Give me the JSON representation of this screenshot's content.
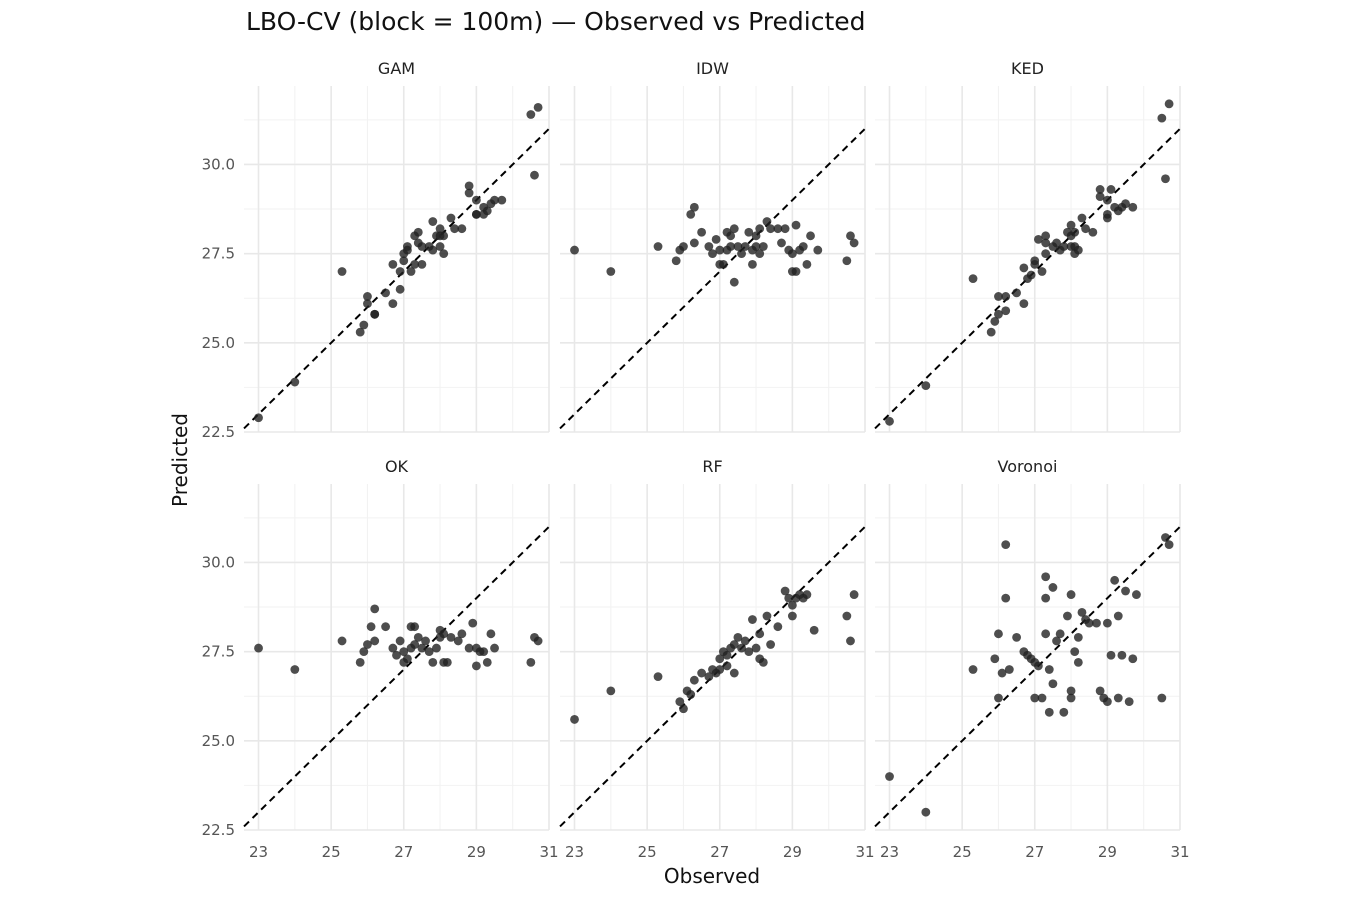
{
  "chart_data": {
    "type": "scatter",
    "title": "LBO-CV (block = 100m) — Observed vs Predicted",
    "xlabel": "Observed",
    "ylabel": "Predicted",
    "xlim": [
      22.6,
      31.0
    ],
    "ylim": [
      22.5,
      32.2
    ],
    "x_ticks": [
      23,
      25,
      27,
      29,
      31
    ],
    "y_ticks": [
      22.5,
      25.0,
      27.5,
      30.0
    ],
    "x_tick_labels": [
      "23",
      "25",
      "27",
      "29",
      "31"
    ],
    "y_tick_labels": [
      "22.5",
      "25.0",
      "27.5",
      "30.0"
    ],
    "reference_line": "y = x",
    "grid": true,
    "layout": "2x3 facets",
    "point_color": "#222222",
    "panels": [
      {
        "name": "GAM",
        "points": [
          [
            23.0,
            22.9
          ],
          [
            24.0,
            23.9
          ],
          [
            25.3,
            27.0
          ],
          [
            25.8,
            25.3
          ],
          [
            25.9,
            25.5
          ],
          [
            26.0,
            26.3
          ],
          [
            26.0,
            26.1
          ],
          [
            26.2,
            25.8
          ],
          [
            26.2,
            25.8
          ],
          [
            26.5,
            26.4
          ],
          [
            26.7,
            26.1
          ],
          [
            26.7,
            27.2
          ],
          [
            26.9,
            26.5
          ],
          [
            26.9,
            27.0
          ],
          [
            27.0,
            27.3
          ],
          [
            27.0,
            27.5
          ],
          [
            27.1,
            27.6
          ],
          [
            27.1,
            27.7
          ],
          [
            27.2,
            27.0
          ],
          [
            27.3,
            27.2
          ],
          [
            27.3,
            28.0
          ],
          [
            27.4,
            27.8
          ],
          [
            27.4,
            28.1
          ],
          [
            27.5,
            27.2
          ],
          [
            27.5,
            27.7
          ],
          [
            27.7,
            27.7
          ],
          [
            27.8,
            27.6
          ],
          [
            27.8,
            28.4
          ],
          [
            27.9,
            28.0
          ],
          [
            28.0,
            28.0
          ],
          [
            28.0,
            28.2
          ],
          [
            28.0,
            27.7
          ],
          [
            28.1,
            27.5
          ],
          [
            28.1,
            28.0
          ],
          [
            28.3,
            28.5
          ],
          [
            28.4,
            28.2
          ],
          [
            28.6,
            28.2
          ],
          [
            28.8,
            29.2
          ],
          [
            28.8,
            29.4
          ],
          [
            29.0,
            28.6
          ],
          [
            29.0,
            28.6
          ],
          [
            29.0,
            29.0
          ],
          [
            29.2,
            28.6
          ],
          [
            29.2,
            28.8
          ],
          [
            29.3,
            28.7
          ],
          [
            29.4,
            28.9
          ],
          [
            29.5,
            29.0
          ],
          [
            29.7,
            29.0
          ],
          [
            30.5,
            31.4
          ],
          [
            30.6,
            29.7
          ],
          [
            30.7,
            31.6
          ]
        ]
      },
      {
        "name": "IDW",
        "points": [
          [
            23.0,
            27.6
          ],
          [
            24.0,
            27.0
          ],
          [
            25.3,
            27.7
          ],
          [
            25.8,
            27.3
          ],
          [
            25.9,
            27.6
          ],
          [
            26.0,
            27.7
          ],
          [
            26.2,
            28.6
          ],
          [
            26.3,
            28.8
          ],
          [
            26.3,
            27.8
          ],
          [
            26.5,
            28.1
          ],
          [
            26.7,
            27.7
          ],
          [
            26.8,
            27.5
          ],
          [
            26.9,
            27.9
          ],
          [
            27.0,
            27.2
          ],
          [
            27.0,
            27.6
          ],
          [
            27.1,
            27.2
          ],
          [
            27.2,
            27.6
          ],
          [
            27.2,
            28.1
          ],
          [
            27.3,
            27.7
          ],
          [
            27.3,
            28.0
          ],
          [
            27.4,
            28.2
          ],
          [
            27.4,
            26.7
          ],
          [
            27.5,
            27.7
          ],
          [
            27.6,
            27.5
          ],
          [
            27.7,
            27.7
          ],
          [
            27.8,
            28.1
          ],
          [
            27.9,
            27.2
          ],
          [
            27.9,
            27.6
          ],
          [
            28.0,
            28.0
          ],
          [
            28.0,
            27.7
          ],
          [
            28.1,
            27.5
          ],
          [
            28.1,
            28.2
          ],
          [
            28.2,
            27.7
          ],
          [
            28.3,
            28.4
          ],
          [
            28.4,
            28.2
          ],
          [
            28.6,
            28.2
          ],
          [
            28.7,
            27.8
          ],
          [
            28.8,
            28.2
          ],
          [
            28.9,
            27.6
          ],
          [
            29.0,
            27.0
          ],
          [
            29.0,
            27.5
          ],
          [
            29.1,
            27.0
          ],
          [
            29.1,
            28.3
          ],
          [
            29.2,
            27.6
          ],
          [
            29.3,
            27.7
          ],
          [
            29.4,
            27.2
          ],
          [
            29.5,
            28.0
          ],
          [
            29.7,
            27.6
          ],
          [
            30.5,
            27.3
          ],
          [
            30.6,
            28.0
          ],
          [
            30.7,
            27.8
          ]
        ]
      },
      {
        "name": "KED",
        "points": [
          [
            23.0,
            22.8
          ],
          [
            24.0,
            23.8
          ],
          [
            25.3,
            26.8
          ],
          [
            25.8,
            25.3
          ],
          [
            25.9,
            25.6
          ],
          [
            26.0,
            26.3
          ],
          [
            26.0,
            25.8
          ],
          [
            26.2,
            25.9
          ],
          [
            26.2,
            26.3
          ],
          [
            26.5,
            26.4
          ],
          [
            26.7,
            26.1
          ],
          [
            26.7,
            27.1
          ],
          [
            26.8,
            26.8
          ],
          [
            26.9,
            26.9
          ],
          [
            27.0,
            27.2
          ],
          [
            27.0,
            27.3
          ],
          [
            27.1,
            27.9
          ],
          [
            27.2,
            27.0
          ],
          [
            27.3,
            27.5
          ],
          [
            27.3,
            27.8
          ],
          [
            27.3,
            28.0
          ],
          [
            27.5,
            27.7
          ],
          [
            27.6,
            27.8
          ],
          [
            27.7,
            27.6
          ],
          [
            27.8,
            27.7
          ],
          [
            27.9,
            28.1
          ],
          [
            28.0,
            28.3
          ],
          [
            28.0,
            28.0
          ],
          [
            28.0,
            27.7
          ],
          [
            28.1,
            27.5
          ],
          [
            28.1,
            28.1
          ],
          [
            28.1,
            27.7
          ],
          [
            28.2,
            27.6
          ],
          [
            28.3,
            28.5
          ],
          [
            28.4,
            28.2
          ],
          [
            28.6,
            28.1
          ],
          [
            28.8,
            29.1
          ],
          [
            28.8,
            29.3
          ],
          [
            29.0,
            28.6
          ],
          [
            29.0,
            28.5
          ],
          [
            29.0,
            29.0
          ],
          [
            29.1,
            29.3
          ],
          [
            29.2,
            28.8
          ],
          [
            29.3,
            28.7
          ],
          [
            29.4,
            28.8
          ],
          [
            29.5,
            28.9
          ],
          [
            29.7,
            28.8
          ],
          [
            30.5,
            31.3
          ],
          [
            30.6,
            29.6
          ],
          [
            30.7,
            31.7
          ]
        ]
      },
      {
        "name": "OK",
        "points": [
          [
            23.0,
            27.6
          ],
          [
            24.0,
            27.0
          ],
          [
            25.3,
            27.8
          ],
          [
            25.8,
            27.2
          ],
          [
            25.9,
            27.5
          ],
          [
            26.0,
            27.7
          ],
          [
            26.1,
            28.2
          ],
          [
            26.2,
            28.7
          ],
          [
            26.2,
            27.8
          ],
          [
            26.5,
            28.2
          ],
          [
            26.7,
            27.6
          ],
          [
            26.8,
            27.4
          ],
          [
            26.9,
            27.8
          ],
          [
            27.0,
            27.2
          ],
          [
            27.0,
            27.5
          ],
          [
            27.1,
            27.3
          ],
          [
            27.2,
            27.6
          ],
          [
            27.2,
            28.2
          ],
          [
            27.3,
            27.7
          ],
          [
            27.3,
            28.2
          ],
          [
            27.4,
            27.9
          ],
          [
            27.5,
            27.6
          ],
          [
            27.6,
            27.8
          ],
          [
            27.7,
            27.5
          ],
          [
            27.8,
            27.2
          ],
          [
            27.9,
            27.6
          ],
          [
            28.0,
            28.1
          ],
          [
            28.0,
            27.9
          ],
          [
            28.1,
            27.2
          ],
          [
            28.1,
            28.0
          ],
          [
            28.2,
            27.2
          ],
          [
            28.3,
            27.9
          ],
          [
            28.5,
            27.8
          ],
          [
            28.6,
            28.0
          ],
          [
            28.8,
            27.6
          ],
          [
            28.9,
            28.3
          ],
          [
            29.0,
            27.1
          ],
          [
            29.0,
            27.6
          ],
          [
            29.1,
            27.5
          ],
          [
            29.2,
            27.5
          ],
          [
            29.3,
            27.2
          ],
          [
            29.4,
            28.0
          ],
          [
            29.5,
            27.6
          ],
          [
            30.5,
            27.2
          ],
          [
            30.6,
            27.9
          ],
          [
            30.7,
            27.8
          ]
        ]
      },
      {
        "name": "RF",
        "points": [
          [
            23.0,
            25.6
          ],
          [
            24.0,
            26.4
          ],
          [
            25.3,
            26.8
          ],
          [
            25.9,
            26.1
          ],
          [
            26.0,
            25.9
          ],
          [
            26.1,
            26.4
          ],
          [
            26.2,
            26.3
          ],
          [
            26.3,
            26.7
          ],
          [
            26.5,
            26.9
          ],
          [
            26.7,
            26.8
          ],
          [
            26.8,
            27.0
          ],
          [
            26.9,
            26.9
          ],
          [
            27.0,
            27.0
          ],
          [
            27.0,
            27.3
          ],
          [
            27.1,
            27.5
          ],
          [
            27.2,
            27.1
          ],
          [
            27.2,
            27.4
          ],
          [
            27.3,
            27.6
          ],
          [
            27.4,
            26.9
          ],
          [
            27.4,
            27.7
          ],
          [
            27.5,
            27.9
          ],
          [
            27.6,
            27.6
          ],
          [
            27.7,
            27.8
          ],
          [
            27.8,
            27.5
          ],
          [
            27.9,
            28.4
          ],
          [
            28.0,
            27.6
          ],
          [
            28.1,
            27.3
          ],
          [
            28.1,
            28.0
          ],
          [
            28.2,
            27.2
          ],
          [
            28.3,
            28.5
          ],
          [
            28.4,
            27.7
          ],
          [
            28.6,
            28.2
          ],
          [
            28.8,
            29.2
          ],
          [
            28.9,
            29.0
          ],
          [
            29.0,
            28.5
          ],
          [
            29.0,
            28.8
          ],
          [
            29.1,
            29.0
          ],
          [
            29.2,
            29.1
          ],
          [
            29.3,
            29.0
          ],
          [
            29.4,
            29.1
          ],
          [
            29.6,
            28.1
          ],
          [
            30.5,
            28.5
          ],
          [
            30.6,
            27.8
          ],
          [
            30.7,
            29.1
          ]
        ]
      },
      {
        "name": "Voronoi",
        "points": [
          [
            23.0,
            24.0
          ],
          [
            24.0,
            23.0
          ],
          [
            25.3,
            27.0
          ],
          [
            25.9,
            27.3
          ],
          [
            26.0,
            28.0
          ],
          [
            26.0,
            26.2
          ],
          [
            26.1,
            26.9
          ],
          [
            26.2,
            29.0
          ],
          [
            26.2,
            30.5
          ],
          [
            26.3,
            27.0
          ],
          [
            26.5,
            27.9
          ],
          [
            26.7,
            27.5
          ],
          [
            26.8,
            27.4
          ],
          [
            26.9,
            27.3
          ],
          [
            27.0,
            27.2
          ],
          [
            27.0,
            26.2
          ],
          [
            27.1,
            27.1
          ],
          [
            27.2,
            26.2
          ],
          [
            27.3,
            28.0
          ],
          [
            27.3,
            29.0
          ],
          [
            27.3,
            29.6
          ],
          [
            27.4,
            27.0
          ],
          [
            27.4,
            25.8
          ],
          [
            27.5,
            26.6
          ],
          [
            27.5,
            29.3
          ],
          [
            27.6,
            27.8
          ],
          [
            27.7,
            28.0
          ],
          [
            27.8,
            25.8
          ],
          [
            27.9,
            28.5
          ],
          [
            28.0,
            26.4
          ],
          [
            28.0,
            26.2
          ],
          [
            28.0,
            29.1
          ],
          [
            28.1,
            27.5
          ],
          [
            28.2,
            27.2
          ],
          [
            28.2,
            27.9
          ],
          [
            28.3,
            28.6
          ],
          [
            28.4,
            28.4
          ],
          [
            28.5,
            28.3
          ],
          [
            28.7,
            28.3
          ],
          [
            28.8,
            26.4
          ],
          [
            28.9,
            26.2
          ],
          [
            29.0,
            28.3
          ],
          [
            29.0,
            26.1
          ],
          [
            29.1,
            27.4
          ],
          [
            29.2,
            29.5
          ],
          [
            29.3,
            26.2
          ],
          [
            29.3,
            28.5
          ],
          [
            29.4,
            27.4
          ],
          [
            29.5,
            29.2
          ],
          [
            29.6,
            26.1
          ],
          [
            29.7,
            27.3
          ],
          [
            29.8,
            29.1
          ],
          [
            30.5,
            26.2
          ],
          [
            30.6,
            30.7
          ],
          [
            30.7,
            30.5
          ]
        ]
      }
    ]
  }
}
